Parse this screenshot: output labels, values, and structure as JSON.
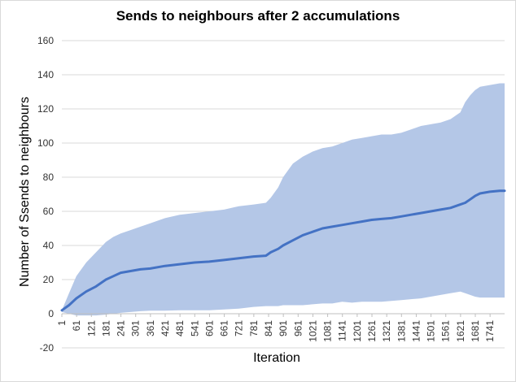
{
  "chart_data": {
    "type": "area",
    "title": "Sends to neighbours after 2 accumulations",
    "xlabel": "Iteration",
    "ylabel": "Number of Ssends to neighbours",
    "ylim": [
      -20,
      160
    ],
    "xlim": [
      1,
      1800
    ],
    "yticks": [
      -20,
      0,
      20,
      40,
      60,
      80,
      100,
      120,
      140,
      160
    ],
    "xticks": [
      1,
      61,
      121,
      181,
      241,
      301,
      361,
      421,
      481,
      541,
      601,
      661,
      721,
      781,
      841,
      901,
      961,
      1021,
      1081,
      1141,
      1201,
      1261,
      1321,
      1381,
      1441,
      1501,
      1561,
      1621,
      1681,
      1741
    ],
    "grid": true,
    "legend": "none",
    "series": [
      {
        "role": "band",
        "color": "#b4c7e7",
        "x": [
          1,
          30,
          60,
          100,
          140,
          180,
          210,
          240,
          280,
          320,
          360,
          420,
          480,
          540,
          600,
          660,
          720,
          780,
          830,
          850,
          880,
          900,
          940,
          980,
          1020,
          1060,
          1100,
          1140,
          1180,
          1220,
          1260,
          1300,
          1340,
          1380,
          1420,
          1460,
          1500,
          1540,
          1580,
          1620,
          1640,
          1660,
          1680,
          1700,
          1740,
          1780,
          1800
        ],
        "upper": [
          2,
          12,
          22,
          30,
          36,
          42,
          45,
          47,
          49,
          51,
          53,
          56,
          58,
          59,
          60,
          61,
          63,
          64,
          65,
          68,
          74,
          80,
          88,
          92,
          95,
          97,
          98,
          100,
          102,
          103,
          104,
          105,
          105,
          106,
          108,
          110,
          111,
          112,
          114,
          118,
          124,
          128,
          131,
          133,
          134,
          135,
          135
        ],
        "lower": [
          1,
          0,
          -1,
          -1,
          -1,
          -0.5,
          0,
          0.5,
          1,
          1.5,
          1.8,
          1.8,
          2,
          2,
          2,
          2.5,
          3,
          4,
          4.5,
          4.5,
          4.5,
          5,
          5,
          5,
          5.5,
          6,
          6,
          7,
          6.5,
          7,
          7,
          7,
          7.5,
          8,
          8.5,
          9,
          10,
          11,
          12,
          13,
          12,
          11,
          10,
          9.5,
          9.5,
          9.5,
          9.5
        ]
      },
      {
        "role": "mean",
        "color": "#4472c4",
        "x": [
          1,
          30,
          60,
          100,
          140,
          180,
          210,
          240,
          280,
          320,
          360,
          420,
          480,
          540,
          600,
          660,
          720,
          780,
          830,
          850,
          880,
          900,
          940,
          980,
          1020,
          1060,
          1100,
          1140,
          1180,
          1220,
          1260,
          1300,
          1340,
          1380,
          1420,
          1460,
          1500,
          1540,
          1580,
          1620,
          1640,
          1660,
          1680,
          1700,
          1740,
          1780,
          1800
        ],
        "values": [
          2,
          5,
          9,
          13,
          16,
          20,
          22,
          24,
          25,
          26,
          26.5,
          28,
          29,
          30,
          30.5,
          31.5,
          32.5,
          33.5,
          34,
          36,
          38,
          40,
          43,
          46,
          48,
          50,
          51,
          52,
          53,
          54,
          55,
          55.5,
          56,
          57,
          58,
          59,
          60,
          61,
          62,
          64,
          65,
          67,
          69,
          70.5,
          71.5,
          72,
          72
        ]
      }
    ]
  }
}
